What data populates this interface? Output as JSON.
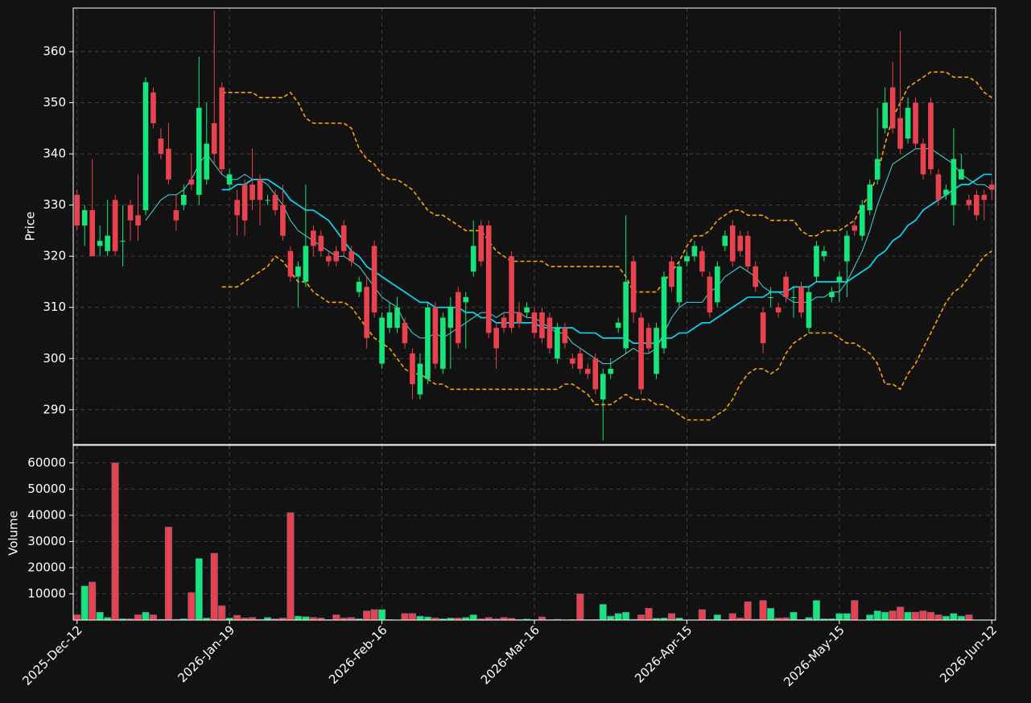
{
  "chart_data": [
    {
      "type": "candlestick",
      "y_label": "Price",
      "categories": [
        "2025-Dec-12",
        null,
        null,
        null,
        null,
        null,
        null,
        null,
        null,
        null,
        null,
        null,
        null,
        null,
        null,
        null,
        null,
        null,
        null,
        null,
        "2026-Jan-19",
        null,
        null,
        null,
        null,
        null,
        null,
        null,
        null,
        null,
        null,
        null,
        null,
        null,
        null,
        null,
        null,
        null,
        null,
        null,
        "2026-Feb-16",
        null,
        null,
        null,
        null,
        null,
        null,
        null,
        null,
        null,
        null,
        null,
        null,
        null,
        null,
        null,
        null,
        null,
        null,
        null,
        "2026-Mar-16",
        null,
        null,
        null,
        null,
        null,
        null,
        null,
        null,
        null,
        null,
        null,
        null,
        null,
        null,
        null,
        null,
        null,
        null,
        null,
        "2026-Apr-15",
        null,
        null,
        null,
        null,
        null,
        null,
        null,
        null,
        null,
        null,
        null,
        null,
        null,
        null,
        null,
        null,
        null,
        null,
        null,
        "2026-May-15",
        null,
        null,
        null,
        null,
        null,
        null,
        null,
        null,
        null,
        null,
        null,
        null,
        null,
        null,
        null,
        null,
        null,
        null,
        null,
        "2026-Jun-12"
      ],
      "open": [
        332,
        326,
        329,
        322,
        321,
        331,
        323,
        330,
        328,
        329,
        352,
        343,
        341,
        329,
        330,
        335,
        332,
        335,
        346,
        353,
        334,
        331,
        334,
        334,
        335,
        331,
        332,
        330,
        321,
        316,
        315,
        325,
        324,
        320,
        321,
        326,
        321,
        313,
        314,
        322,
        299,
        306,
        306,
        307,
        301,
        293,
        296,
        310,
        298,
        306,
        313,
        311,
        317,
        326,
        326,
        306,
        308,
        320,
        309,
        309,
        309,
        309,
        308,
        300,
        306,
        300,
        301,
        298,
        300,
        292,
        297,
        306,
        302,
        319,
        308,
        306,
        297,
        302,
        319,
        311,
        319,
        320,
        321,
        316,
        311,
        322,
        326,
        324,
        324,
        318,
        309,
        312,
        310,
        316,
        312,
        314,
        306,
        316,
        320,
        312,
        315,
        319,
        326,
        324,
        329,
        335,
        345,
        353,
        347,
        343,
        350,
        342,
        350,
        336,
        332,
        330,
        335,
        331,
        332,
        332,
        334
      ],
      "high": [
        333,
        330,
        339,
        326,
        331,
        332,
        330,
        331,
        336,
        355,
        353,
        345,
        346,
        332,
        334,
        340,
        359,
        350,
        368,
        354,
        337,
        333,
        335,
        341,
        336,
        332,
        333,
        334,
        322,
        319,
        334,
        326,
        325,
        321,
        322,
        327,
        322,
        316,
        316,
        323,
        309,
        311,
        312,
        308,
        302,
        301,
        311,
        311,
        309,
        312,
        314,
        313,
        327,
        327,
        327,
        307,
        309,
        321,
        311,
        311,
        310,
        310,
        309,
        307,
        307,
        301,
        302,
        299,
        301,
        298,
        300,
        308,
        328,
        320,
        309,
        307,
        307,
        317,
        320,
        319,
        321,
        323,
        322,
        317,
        319,
        325,
        327,
        325,
        325,
        319,
        310,
        314,
        311,
        317,
        314,
        315,
        314,
        323,
        322,
        314,
        317,
        325,
        327,
        331,
        335,
        349,
        353,
        358,
        364,
        351,
        351,
        343,
        351,
        337,
        334,
        345,
        340,
        332,
        333,
        333,
        335
      ],
      "low": [
        325,
        322,
        320,
        320,
        320,
        320,
        318,
        323,
        323,
        328,
        345,
        339,
        334,
        325,
        329,
        333,
        330,
        334,
        338,
        336,
        333,
        324,
        324,
        329,
        326,
        330,
        328,
        323,
        315,
        310,
        314,
        320,
        320,
        318,
        318,
        320,
        318,
        312,
        302,
        308,
        298,
        305,
        305,
        302,
        292,
        292,
        295,
        298,
        297,
        298,
        302,
        302,
        316,
        318,
        304,
        298,
        305,
        305,
        306,
        308,
        304,
        303,
        301,
        299,
        302,
        298,
        297,
        296,
        293,
        284,
        296,
        305,
        301,
        307,
        293,
        301,
        296,
        301,
        313,
        310,
        318,
        319,
        316,
        308,
        310,
        321,
        318,
        320,
        317,
        313,
        301,
        310,
        308,
        311,
        308,
        308,
        305,
        315,
        319,
        311,
        311,
        312,
        324,
        323,
        328,
        334,
        344,
        344,
        340,
        342,
        341,
        335,
        336,
        330,
        331,
        326,
        335,
        329,
        327,
        327,
        331
      ],
      "close": [
        326,
        329,
        320,
        323,
        324,
        321,
        323,
        327,
        326,
        354,
        346,
        340,
        335,
        327,
        332,
        334,
        349,
        342,
        340,
        337,
        336,
        328,
        327,
        331,
        331,
        331,
        329,
        324,
        316,
        318,
        322,
        322,
        321,
        319,
        319,
        321,
        319,
        315,
        304,
        309,
        308,
        309,
        310,
        303,
        295,
        299,
        310,
        299,
        308,
        310,
        303,
        312,
        322,
        319,
        305,
        302,
        306,
        306,
        307,
        310,
        305,
        304,
        302,
        306,
        303,
        299,
        298,
        297,
        294,
        297,
        298,
        307,
        315,
        309,
        294,
        302,
        306,
        316,
        314,
        318,
        320,
        322,
        317,
        309,
        318,
        324,
        319,
        321,
        318,
        314,
        303,
        312,
        309,
        312,
        312,
        309,
        313,
        322,
        321,
        313,
        316,
        324,
        325,
        330,
        334,
        339,
        350,
        345,
        341,
        349,
        342,
        336,
        337,
        331,
        333,
        339,
        337,
        330,
        328,
        331,
        333
      ],
      "up_color": "#15e57a",
      "down_color": "#e8424f",
      "series": [
        {
          "color": "#48d8d8",
          "values": [
            null,
            null,
            null,
            null,
            null,
            null,
            null,
            null,
            null,
            327,
            329,
            331,
            332,
            332,
            333,
            335,
            338,
            340,
            338,
            336,
            335,
            335,
            336,
            335,
            335,
            334,
            332,
            330,
            327,
            325,
            324,
            323,
            322,
            321,
            320,
            320,
            319,
            318,
            316,
            314,
            312,
            311,
            310,
            307,
            305,
            304,
            304,
            305,
            304,
            305,
            306,
            307,
            308,
            309,
            309,
            308,
            309,
            309,
            309,
            308,
            308,
            307,
            306,
            305,
            305,
            303,
            302,
            301,
            300,
            299,
            299,
            300,
            301,
            302,
            301,
            301,
            302,
            305,
            308,
            310,
            311,
            311,
            311,
            313,
            314,
            316,
            317,
            318,
            317,
            316,
            314,
            313,
            313,
            312,
            311,
            311,
            311,
            312,
            312,
            313,
            313,
            315,
            318,
            321,
            325,
            330,
            334,
            338,
            339,
            340,
            341,
            341,
            341,
            340,
            339,
            338,
            336,
            335,
            334,
            334,
            333
          ]
        },
        {
          "color": "#00e5ff",
          "values": [
            null,
            null,
            null,
            null,
            null,
            null,
            null,
            null,
            null,
            null,
            null,
            null,
            null,
            null,
            null,
            null,
            null,
            null,
            null,
            333,
            333,
            334,
            334,
            335,
            335,
            335,
            334,
            333,
            331,
            330,
            329,
            329,
            328,
            327,
            325,
            323,
            321,
            320,
            318,
            317,
            316,
            315,
            314,
            313,
            312,
            311,
            311,
            310,
            310,
            310,
            310,
            309,
            309,
            308,
            308,
            307,
            307,
            307,
            307,
            307,
            307,
            306,
            306,
            306,
            306,
            306,
            305,
            305,
            305,
            304,
            304,
            304,
            304,
            303,
            303,
            303,
            303,
            304,
            304,
            305,
            305,
            306,
            307,
            307,
            308,
            309,
            310,
            311,
            312,
            312,
            312,
            313,
            313,
            313,
            314,
            314,
            314,
            315,
            315,
            315,
            315,
            315,
            316,
            317,
            318,
            320,
            321,
            323,
            324,
            326,
            327,
            329,
            330,
            331,
            332,
            333,
            334,
            334,
            335,
            336,
            336
          ]
        },
        {
          "color": "#ffa500",
          "dashed": true,
          "values": [
            null,
            null,
            null,
            null,
            null,
            null,
            null,
            null,
            null,
            null,
            null,
            null,
            null,
            null,
            null,
            null,
            null,
            null,
            null,
            352,
            352,
            352,
            352,
            352,
            351,
            351,
            351,
            351,
            352,
            350,
            347,
            346,
            346,
            346,
            346,
            346,
            345,
            341,
            339,
            338,
            336,
            335,
            335,
            334,
            333,
            331,
            329,
            328,
            328,
            327,
            326,
            325,
            325,
            325,
            323,
            321,
            320,
            319,
            319,
            319,
            319,
            319,
            318,
            318,
            318,
            318,
            318,
            318,
            318,
            318,
            318,
            318,
            316,
            313,
            313,
            313,
            313,
            315,
            317,
            319,
            322,
            324,
            324,
            325,
            327,
            328,
            329,
            329,
            328,
            328,
            328,
            327,
            327,
            327,
            327,
            325,
            324,
            324,
            325,
            325,
            325,
            326,
            327,
            330,
            332,
            336,
            342,
            347,
            350,
            353,
            354,
            355,
            356,
            356,
            356,
            355,
            355,
            355,
            354,
            352,
            351
          ]
        },
        {
          "color": "#ffa500",
          "dashed": true,
          "values": [
            null,
            null,
            null,
            null,
            null,
            null,
            null,
            null,
            null,
            null,
            null,
            null,
            null,
            null,
            null,
            null,
            null,
            null,
            null,
            314,
            314,
            314,
            315,
            316,
            317,
            318,
            320,
            319,
            317,
            315,
            315,
            313,
            312,
            311,
            311,
            311,
            310,
            308,
            306,
            304,
            303,
            302,
            300,
            298,
            297,
            297,
            296,
            295,
            295,
            294,
            294,
            294,
            294,
            294,
            294,
            294,
            294,
            294,
            294,
            294,
            294,
            294,
            294,
            294,
            295,
            295,
            294,
            293,
            291,
            291,
            291,
            292,
            293,
            292,
            292,
            292,
            291,
            291,
            290,
            289,
            288,
            288,
            288,
            288,
            289,
            290,
            292,
            295,
            297,
            298,
            298,
            297,
            298,
            301,
            303,
            304,
            305,
            305,
            305,
            305,
            304,
            303,
            303,
            302,
            301,
            299,
            295,
            295,
            294,
            297,
            299,
            302,
            305,
            308,
            311,
            313,
            314,
            316,
            318,
            320,
            321
          ]
        }
      ],
      "ylim": [
        283.2,
        368.5
      ],
      "yticks": [
        290,
        300,
        310,
        320,
        330,
        340,
        350,
        360
      ],
      "grid": true
    },
    {
      "type": "bar",
      "y_label": "Volume",
      "values": [
        2000,
        13000,
        14500,
        3000,
        1000,
        60000,
        500,
        500,
        2000,
        3000,
        2000,
        300,
        35500,
        300,
        500,
        10500,
        23500,
        800,
        25500,
        5500,
        800,
        1800,
        800,
        1000,
        300,
        1000,
        500,
        800,
        41000,
        1500,
        1300,
        1000,
        800,
        200,
        2000,
        800,
        1000,
        500,
        3500,
        4000,
        4000,
        200,
        100,
        2500,
        2500,
        1500,
        1200,
        800,
        500,
        800,
        800,
        1000,
        2000,
        500,
        1000,
        500,
        1000,
        700,
        200,
        400,
        200,
        1200,
        200,
        300,
        100,
        200,
        10000,
        200,
        200,
        6000,
        1500,
        2500,
        3000,
        300,
        2000,
        4500,
        700,
        800,
        2500,
        800,
        100,
        100,
        4000,
        200,
        2000,
        100,
        2500,
        800,
        7000,
        300,
        7500,
        4500,
        800,
        900,
        3000,
        200,
        1000,
        7500,
        500,
        500,
        2500,
        2500,
        7500,
        100,
        2000,
        3500,
        3000,
        3500,
        5000,
        3000,
        3000,
        3500,
        3000,
        2000,
        1500,
        2500,
        1500,
        2000,
        100,
        100,
        100
      ],
      "ylim": [
        0,
        66700
      ],
      "yticks": [
        10000,
        20000,
        30000,
        40000,
        50000,
        60000
      ],
      "grid": true
    }
  ]
}
